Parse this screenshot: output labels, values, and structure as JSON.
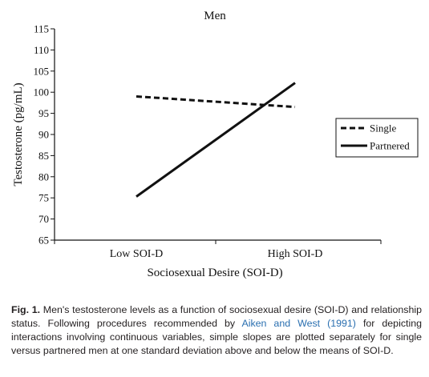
{
  "chart_data": {
    "type": "line",
    "title": "Men",
    "xlabel": "Sociosexual Desire (SOI-D)",
    "ylabel": "Testosterone (pg/mL)",
    "categories": [
      "Low SOI-D",
      "High SOI-D"
    ],
    "ylim": [
      65,
      115
    ],
    "yticks": [
      65,
      70,
      75,
      80,
      85,
      90,
      95,
      100,
      105,
      110,
      115
    ],
    "grid": false,
    "legend_position": "right",
    "series": [
      {
        "name": "Single",
        "style": "dashed",
        "color": "#111111",
        "values": [
          99.0,
          96.5
        ]
      },
      {
        "name": "Partnered",
        "style": "solid",
        "color": "#111111",
        "values": [
          75.3,
          102.2
        ]
      }
    ]
  },
  "caption": {
    "label": "Fig. 1.",
    "text_before": " Men's testosterone levels as a function of sociosexual desire (SOI-D) and relationship status. Following procedures recommended by ",
    "citation": "Aiken and West (1991)",
    "text_after": " for depicting interactions involving continuous variables, simple slopes are plotted separately for single versus partnered men at one standard deviation above and below the means of SOI-D."
  }
}
